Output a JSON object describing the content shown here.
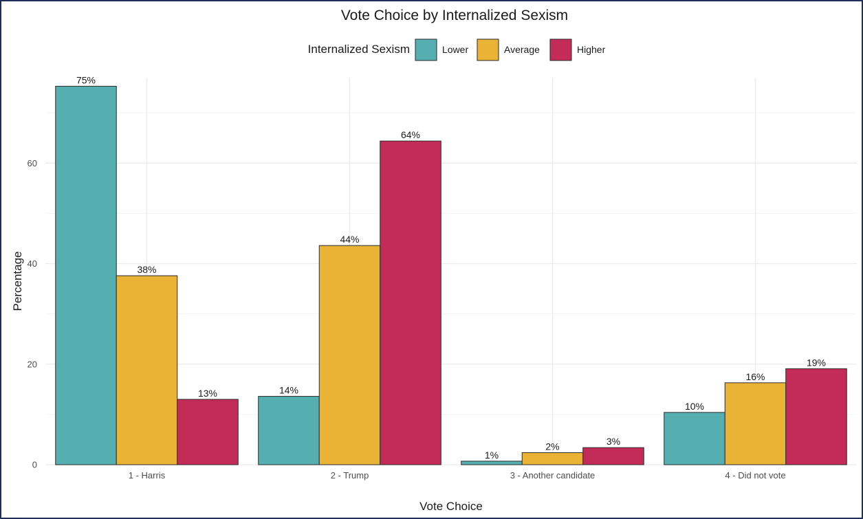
{
  "chart_data": {
    "type": "bar",
    "title": "Vote Choice by Internalized Sexism",
    "xlabel": "Vote Choice",
    "ylabel": "Percentage",
    "legend_title": "Internalized Sexism",
    "legend_position": "top",
    "grid": true,
    "ylim": [
      0,
      77
    ],
    "yticks": [
      0,
      20,
      40,
      60
    ],
    "categories": [
      "1 - Harris",
      "2 - Trump",
      "3 - Another candidate",
      "4 - Did not vote"
    ],
    "series": [
      {
        "name": "Lower",
        "color": "#55aeb0",
        "values": [
          75.3,
          13.6,
          0.7,
          10.4
        ],
        "labels": [
          "75%",
          "14%",
          "1%",
          "10%"
        ]
      },
      {
        "name": "Average",
        "color": "#ebb336",
        "values": [
          37.6,
          43.6,
          2.4,
          16.3
        ],
        "labels": [
          "38%",
          "44%",
          "2%",
          "16%"
        ]
      },
      {
        "name": "Higher",
        "color": "#c32c58",
        "values": [
          13.0,
          64.4,
          3.4,
          19.1
        ],
        "labels": [
          "13%",
          "64%",
          "3%",
          "19%"
        ]
      }
    ]
  }
}
